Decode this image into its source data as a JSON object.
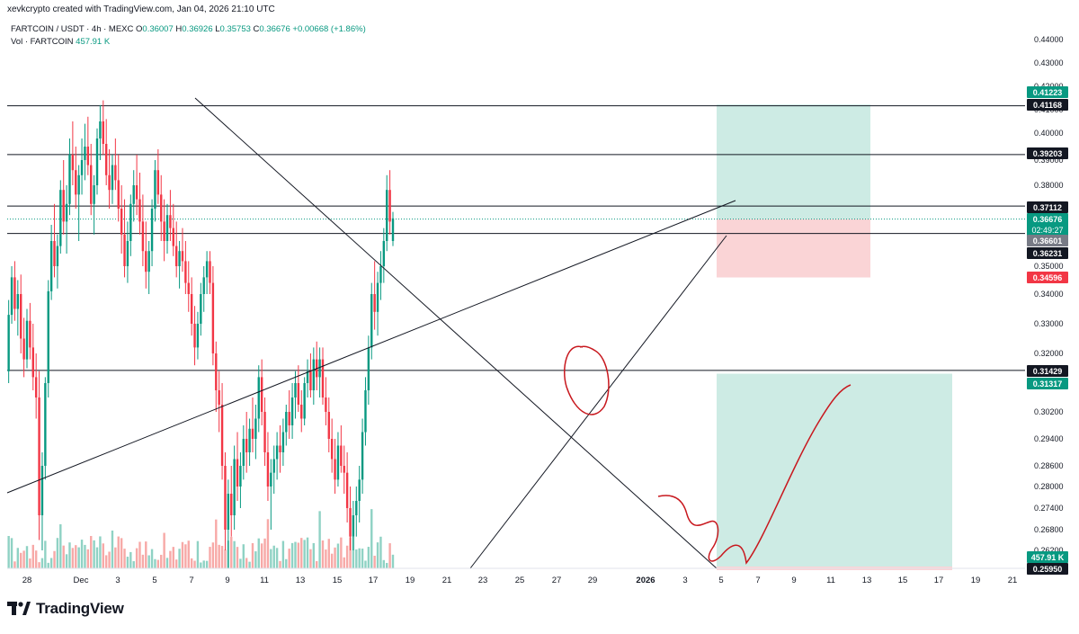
{
  "header": {
    "created_by": "xevkcrypto created with TradingView.com, Jan 04, 2026 21:10 UTC"
  },
  "legend": {
    "symbol": "FARTCOIN / USDT · 4h · MEXC",
    "o_label": "O",
    "o_value": "0.36007",
    "h_label": "H",
    "h_value": "0.36926",
    "l_label": "L",
    "l_value": "0.35753",
    "c_label": "C",
    "c_value": "0.36676",
    "change": "+0.00668 (+1.86%)",
    "vol_label": "Vol · FARTCOIN",
    "vol_value": "457.91 K"
  },
  "brand": {
    "name": "TradingView"
  },
  "colors": {
    "up": "#089981",
    "down": "#f23645",
    "up_vol": "#8fd2c4",
    "down_vol": "#f7a9a7",
    "profit_zone": "#cdebe4",
    "loss_zone": "#fad4d6",
    "pen": "#c8181e",
    "line": "#131722"
  },
  "chart_data": {
    "type": "candlestick",
    "timeframe": "4h",
    "y_axis": {
      "ticks": [
        "0.44000",
        "0.43000",
        "0.42000",
        "0.41000",
        "0.40000",
        "0.39000",
        "0.38000",
        "0.37000",
        "0.36000",
        "0.35000",
        "0.34000",
        "0.33000",
        "0.32000",
        "0.31000",
        "0.30200",
        "0.29400",
        "0.28600",
        "0.28000",
        "0.27400",
        "0.26800",
        "0.26200"
      ]
    },
    "x_axis": {
      "ticks": [
        "28",
        "Dec",
        "3",
        "5",
        "7",
        "9",
        "11",
        "13",
        "15",
        "17",
        "19",
        "21",
        "23",
        "25",
        "27",
        "29",
        "2026",
        "3",
        "5",
        "7",
        "9",
        "11",
        "13",
        "15",
        "17",
        "19",
        "21"
      ]
    },
    "price_labels": [
      {
        "text": "0.41223",
        "style": "green"
      },
      {
        "text": "0.41168",
        "style": "black"
      },
      {
        "text": "0.39203",
        "style": "black"
      },
      {
        "text": "0.37112",
        "style": "black"
      },
      {
        "text": "0.36676",
        "style": "green-countdown",
        "sub": "02:49:27"
      },
      {
        "text": "0.36601",
        "style": "gray"
      },
      {
        "text": "0.36231",
        "style": "black"
      },
      {
        "text": "0.34596",
        "style": "red"
      },
      {
        "text": "0.31429",
        "style": "black"
      },
      {
        "text": "0.31317",
        "style": "green"
      },
      {
        "text": "457.91 K",
        "style": "green"
      },
      {
        "text": "0.25950",
        "style": "black"
      }
    ],
    "horizontal_levels": [
      0.41168,
      0.39203,
      0.37112,
      0.36231,
      0.31429,
      0.2595
    ],
    "candles": [
      [
        0.314,
        0.338,
        0.31,
        0.333
      ],
      [
        0.333,
        0.35,
        0.33,
        0.346
      ],
      [
        0.346,
        0.352,
        0.331,
        0.335
      ],
      [
        0.335,
        0.345,
        0.326,
        0.34
      ],
      [
        0.34,
        0.347,
        0.32,
        0.325
      ],
      [
        0.325,
        0.332,
        0.312,
        0.318
      ],
      [
        0.318,
        0.335,
        0.315,
        0.331
      ],
      [
        0.331,
        0.337,
        0.318,
        0.322
      ],
      [
        0.322,
        0.33,
        0.308,
        0.312
      ],
      [
        0.312,
        0.32,
        0.3,
        0.306
      ],
      [
        0.306,
        0.314,
        0.265,
        0.272
      ],
      [
        0.272,
        0.29,
        0.262,
        0.286
      ],
      [
        0.286,
        0.312,
        0.282,
        0.31
      ],
      [
        0.31,
        0.345,
        0.306,
        0.341
      ],
      [
        0.341,
        0.365,
        0.338,
        0.36
      ],
      [
        0.36,
        0.372,
        0.346,
        0.35
      ],
      [
        0.35,
        0.362,
        0.342,
        0.358
      ],
      [
        0.358,
        0.382,
        0.355,
        0.378
      ],
      [
        0.378,
        0.39,
        0.362,
        0.366
      ],
      [
        0.366,
        0.38,
        0.355,
        0.372
      ],
      [
        0.372,
        0.398,
        0.368,
        0.392
      ],
      [
        0.392,
        0.405,
        0.38,
        0.386
      ],
      [
        0.386,
        0.395,
        0.37,
        0.376
      ],
      [
        0.376,
        0.388,
        0.36,
        0.384
      ],
      [
        0.384,
        0.398,
        0.376,
        0.39
      ],
      [
        0.39,
        0.404,
        0.382,
        0.395
      ],
      [
        0.395,
        0.407,
        0.384,
        0.388
      ],
      [
        0.388,
        0.396,
        0.368,
        0.372
      ],
      [
        0.372,
        0.384,
        0.362,
        0.38
      ],
      [
        0.38,
        0.402,
        0.376,
        0.398
      ],
      [
        0.398,
        0.412,
        0.39,
        0.405
      ],
      [
        0.405,
        0.414,
        0.392,
        0.396
      ],
      [
        0.396,
        0.406,
        0.38,
        0.384
      ],
      [
        0.384,
        0.394,
        0.37,
        0.378
      ],
      [
        0.378,
        0.392,
        0.372,
        0.388
      ],
      [
        0.388,
        0.398,
        0.378,
        0.382
      ],
      [
        0.382,
        0.392,
        0.366,
        0.37
      ],
      [
        0.37,
        0.38,
        0.355,
        0.362
      ],
      [
        0.362,
        0.374,
        0.346,
        0.35
      ],
      [
        0.35,
        0.366,
        0.344,
        0.36
      ],
      [
        0.36,
        0.376,
        0.354,
        0.372
      ],
      [
        0.372,
        0.386,
        0.366,
        0.38
      ],
      [
        0.38,
        0.392,
        0.368,
        0.374
      ],
      [
        0.374,
        0.385,
        0.362,
        0.366
      ],
      [
        0.366,
        0.376,
        0.35,
        0.356
      ],
      [
        0.356,
        0.366,
        0.342,
        0.348
      ],
      [
        0.348,
        0.36,
        0.34,
        0.356
      ],
      [
        0.356,
        0.374,
        0.35,
        0.37
      ],
      [
        0.37,
        0.39,
        0.366,
        0.386
      ],
      [
        0.386,
        0.394,
        0.372,
        0.376
      ],
      [
        0.376,
        0.384,
        0.36,
        0.366
      ],
      [
        0.366,
        0.374,
        0.352,
        0.36
      ],
      [
        0.36,
        0.372,
        0.355,
        0.368
      ],
      [
        0.368,
        0.378,
        0.36,
        0.364
      ],
      [
        0.364,
        0.372,
        0.354,
        0.358
      ],
      [
        0.358,
        0.366,
        0.346,
        0.35
      ],
      [
        0.35,
        0.36,
        0.342,
        0.356
      ],
      [
        0.356,
        0.364,
        0.348,
        0.352
      ],
      [
        0.352,
        0.36,
        0.34,
        0.344
      ],
      [
        0.344,
        0.352,
        0.334,
        0.34
      ],
      [
        0.34,
        0.346,
        0.326,
        0.33
      ],
      [
        0.33,
        0.336,
        0.316,
        0.322
      ],
      [
        0.322,
        0.334,
        0.318,
        0.33
      ],
      [
        0.33,
        0.344,
        0.326,
        0.34
      ],
      [
        0.34,
        0.35,
        0.334,
        0.346
      ],
      [
        0.346,
        0.356,
        0.34,
        0.352
      ],
      [
        0.352,
        0.356,
        0.34,
        0.344
      ],
      [
        0.344,
        0.35,
        0.316,
        0.32
      ],
      [
        0.32,
        0.324,
        0.302,
        0.308
      ],
      [
        0.308,
        0.314,
        0.296,
        0.304
      ],
      [
        0.304,
        0.31,
        0.282,
        0.286
      ],
      [
        0.286,
        0.29,
        0.262,
        0.268
      ],
      [
        0.268,
        0.282,
        0.258,
        0.278
      ],
      [
        0.278,
        0.286,
        0.266,
        0.272
      ],
      [
        0.272,
        0.292,
        0.268,
        0.288
      ],
      [
        0.288,
        0.296,
        0.276,
        0.28
      ],
      [
        0.28,
        0.29,
        0.274,
        0.286
      ],
      [
        0.286,
        0.298,
        0.282,
        0.294
      ],
      [
        0.294,
        0.302,
        0.284,
        0.29
      ],
      [
        0.29,
        0.3,
        0.286,
        0.297
      ],
      [
        0.297,
        0.306,
        0.29,
        0.294
      ],
      [
        0.294,
        0.304,
        0.288,
        0.3
      ],
      [
        0.3,
        0.316,
        0.296,
        0.312
      ],
      [
        0.312,
        0.318,
        0.298,
        0.302
      ],
      [
        0.302,
        0.306,
        0.286,
        0.29
      ],
      [
        0.29,
        0.296,
        0.276,
        0.28
      ],
      [
        0.28,
        0.288,
        0.268,
        0.284
      ],
      [
        0.284,
        0.292,
        0.278,
        0.288
      ],
      [
        0.288,
        0.296,
        0.282,
        0.292
      ],
      [
        0.292,
        0.298,
        0.284,
        0.29
      ],
      [
        0.29,
        0.3,
        0.286,
        0.296
      ],
      [
        0.296,
        0.304,
        0.292,
        0.302
      ],
      [
        0.302,
        0.308,
        0.294,
        0.298
      ],
      [
        0.298,
        0.31,
        0.294,
        0.306
      ],
      [
        0.306,
        0.314,
        0.3,
        0.31
      ],
      [
        0.31,
        0.316,
        0.302,
        0.304
      ],
      [
        0.304,
        0.308,
        0.296,
        0.3
      ],
      [
        0.3,
        0.312,
        0.298,
        0.31
      ],
      [
        0.31,
        0.318,
        0.306,
        0.314
      ],
      [
        0.314,
        0.32,
        0.306,
        0.308
      ],
      [
        0.308,
        0.322,
        0.304,
        0.318
      ],
      [
        0.318,
        0.324,
        0.308,
        0.312
      ],
      [
        0.312,
        0.322,
        0.306,
        0.318
      ],
      [
        0.318,
        0.322,
        0.304,
        0.306
      ],
      [
        0.306,
        0.312,
        0.298,
        0.302
      ],
      [
        0.302,
        0.306,
        0.29,
        0.294
      ],
      [
        0.294,
        0.3,
        0.284,
        0.288
      ],
      [
        0.288,
        0.294,
        0.278,
        0.282
      ],
      [
        0.282,
        0.296,
        0.28,
        0.292
      ],
      [
        0.292,
        0.298,
        0.284,
        0.286
      ],
      [
        0.286,
        0.292,
        0.278,
        0.284
      ],
      [
        0.284,
        0.29,
        0.27,
        0.274
      ],
      [
        0.274,
        0.28,
        0.262,
        0.266
      ],
      [
        0.266,
        0.276,
        0.262,
        0.272
      ],
      [
        0.272,
        0.28,
        0.266,
        0.276
      ],
      [
        0.276,
        0.286,
        0.27,
        0.282
      ],
      [
        0.282,
        0.3,
        0.278,
        0.296
      ],
      [
        0.296,
        0.312,
        0.292,
        0.308
      ],
      [
        0.308,
        0.326,
        0.304,
        0.322
      ],
      [
        0.322,
        0.344,
        0.318,
        0.34
      ],
      [
        0.34,
        0.352,
        0.328,
        0.334
      ],
      [
        0.334,
        0.348,
        0.326,
        0.344
      ],
      [
        0.344,
        0.356,
        0.338,
        0.35
      ],
      [
        0.35,
        0.364,
        0.344,
        0.36
      ],
      [
        0.36,
        0.384,
        0.356,
        0.378
      ],
      [
        0.378,
        0.386,
        0.362,
        0.366
      ],
      [
        0.36,
        0.369,
        0.358,
        0.367
      ]
    ],
    "volume": {
      "last": "457.91 K"
    },
    "drawings": [
      {
        "type": "trendline",
        "from": "2025-11-27",
        "to": "2026-01-05",
        "note": "rising line"
      },
      {
        "type": "trendline",
        "from": "2025-12-07",
        "to": "2026-01-04",
        "note": "falling line"
      },
      {
        "type": "trendline",
        "from": "2025-12-22",
        "to": "2026-01-05",
        "note": "steep rising line"
      },
      {
        "type": "long_position",
        "entry": 0.36676,
        "target": 0.41223,
        "stop": 0.34596
      },
      {
        "type": "long_position",
        "entry": 0.2595,
        "target": 0.31317
      },
      {
        "type": "freehand",
        "note": "red circle around Dec 28 top"
      },
      {
        "type": "freehand",
        "note": "red projected path"
      }
    ]
  }
}
